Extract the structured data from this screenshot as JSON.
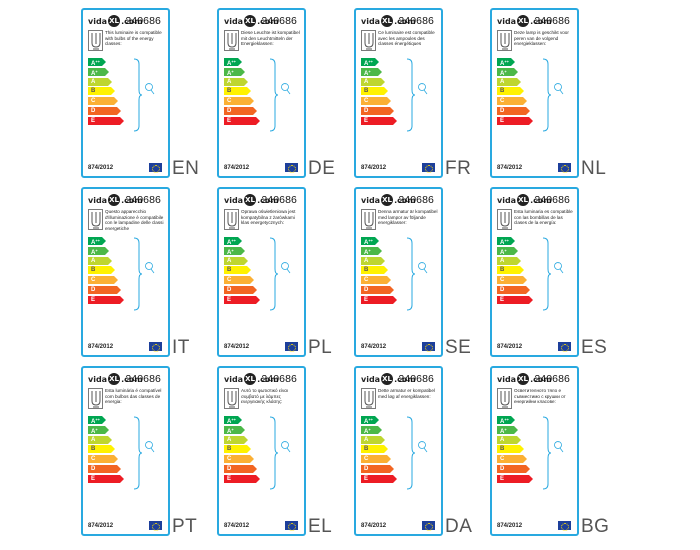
{
  "brand": {
    "left": "vida",
    "mid": "XL",
    "right": ".com"
  },
  "model_number": "240686",
  "regulation": "874/2012",
  "colors": {
    "frame": "#29a9e0",
    "eu_flag": "#1d3f9b"
  },
  "icons": [
    "lamp-icon",
    "bracket-icon",
    "bulb-icon",
    "eu-flag-icon"
  ],
  "energy_classes": [
    {
      "label": "A",
      "sup": "++",
      "color": "#00a651"
    },
    {
      "label": "A",
      "sup": "+",
      "color": "#4cb848"
    },
    {
      "label": "A",
      "sup": "",
      "color": "#bed630"
    },
    {
      "label": "B",
      "sup": "",
      "color": "#fff200"
    },
    {
      "label": "C",
      "sup": "",
      "color": "#fbb034"
    },
    {
      "label": "D",
      "sup": "",
      "color": "#f26522"
    },
    {
      "label": "E",
      "sup": "",
      "color": "#ed1c24"
    }
  ],
  "labels": [
    {
      "lang": "EN",
      "text": "This luminaire is compatible with bulbs of the energy classes:"
    },
    {
      "lang": "DE",
      "text": "Diese Leuchte ist kompatibel mit den Leuchtmitteln der Energieklassen:"
    },
    {
      "lang": "FR",
      "text": "Ce luminaire est compatible avec les ampoules des classes énergétiques"
    },
    {
      "lang": "NL",
      "text": "Deze lamp is geschikt voor peren van de volgend energieklassen:"
    },
    {
      "lang": "IT",
      "text": "Questo apparecchio d'illuminazione è compatibile con le lampadine delle classi energetiche"
    },
    {
      "lang": "PL",
      "text": "Oprawa oświetleniowa jest kompatybilna z żarówkami klas energetycznych:"
    },
    {
      "lang": "SE",
      "text": "Denna armatur är kompatibel med lampor av följande energiklasser:"
    },
    {
      "lang": "ES",
      "text": "Esta luminaria es compatible con las bombillas de las clases de la energía:"
    },
    {
      "lang": "PT",
      "text": "Esta luminária é compatível com bulbos das classes de energia:"
    },
    {
      "lang": "EL",
      "text": "Αυτό το φωτιστικό είναι συμβατό με λάμπες ενεργειακής κλάσης:"
    },
    {
      "lang": "DA",
      "text": "Dette armatur er kompatibel med løg af energiklassen:"
    },
    {
      "lang": "BG",
      "text": "Осветителното тяло е съвместимо с крушки от енергийни класове:"
    }
  ]
}
